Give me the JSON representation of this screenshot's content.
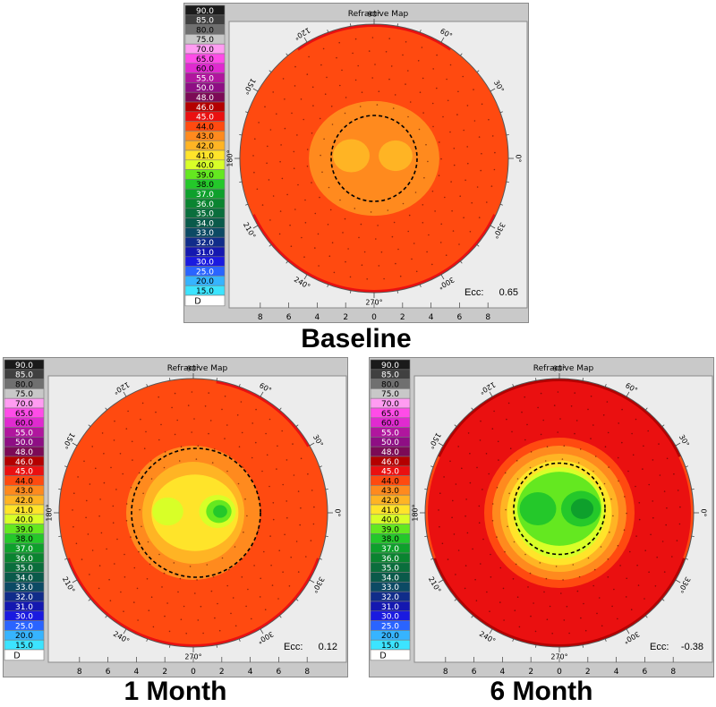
{
  "chart_data": [
    {
      "type": "heatmap",
      "title": "Refractive Map",
      "caption": "Baseline",
      "ecc_label": "Ecc:",
      "ecc_value": "0.65",
      "unit": "D",
      "x_ticks": [
        "8",
        "6",
        "4",
        "2",
        "0",
        "2",
        "4",
        "6",
        "8"
      ],
      "angle_labels": [
        "90°",
        "60°",
        "30°",
        "0°",
        "330°",
        "300°",
        "270°",
        "240°",
        "210°",
        "180°",
        "150°",
        "120°"
      ],
      "central_zone": {
        "cx_mm": 0,
        "cy_mm": 0,
        "r_mm": 3.2
      },
      "regions": [
        {
          "label": "45.0",
          "shape": "cap-top",
          "inner_mm": 6.0,
          "from_deg": 55,
          "to_deg": 125
        },
        {
          "label": "45.0",
          "shape": "cap-bottom",
          "inner_mm": 4.5,
          "from_deg": 205,
          "to_deg": 335
        },
        {
          "label": "44.0",
          "shape": "ring",
          "inner_mm": 4.5,
          "outer_mm": 9.8
        },
        {
          "label": "43.0",
          "shape": "ring",
          "inner_mm": 0,
          "outer_mm": 4.5
        },
        {
          "label": "42.0",
          "shape": "blob",
          "cx_mm": -1.7,
          "cy_mm": 0.2,
          "r_mm": 1.3
        },
        {
          "label": "42.0",
          "shape": "blob",
          "cx_mm": 1.6,
          "cy_mm": 0.2,
          "r_mm": 1.2
        }
      ]
    },
    {
      "type": "heatmap",
      "title": "Refractive Map",
      "caption": "1 Month",
      "ecc_label": "Ecc:",
      "ecc_value": "0.12",
      "unit": "D",
      "x_ticks": [
        "8",
        "6",
        "4",
        "2",
        "0",
        "2",
        "4",
        "6",
        "8"
      ],
      "angle_labels": [
        "90°",
        "60°",
        "30°",
        "0°",
        "330°",
        "300°",
        "270°",
        "240°",
        "210°",
        "180°",
        "150°",
        "120°"
      ],
      "central_zone": {
        "cx_mm": 0.2,
        "cy_mm": 0,
        "r_mm": 4.8
      },
      "regions": [
        {
          "label": "45.0",
          "shape": "cap-bottom",
          "inner_mm": 6.5,
          "from_deg": 200,
          "to_deg": 340
        },
        {
          "label": "45.0",
          "shape": "cap-top",
          "inner_mm": 7.0,
          "from_deg": 30,
          "to_deg": 80
        },
        {
          "label": "44.0",
          "shape": "ring",
          "inner_mm": 5.0,
          "outer_mm": 9.8
        },
        {
          "label": "43.0",
          "shape": "ring",
          "inner_mm": 3.8,
          "outer_mm": 5.0
        },
        {
          "label": "42.0",
          "shape": "ring",
          "inner_mm": 3.0,
          "outer_mm": 3.8
        },
        {
          "label": "41.0",
          "shape": "ring",
          "inner_mm": 0,
          "outer_mm": 3.0
        },
        {
          "label": "40.0",
          "shape": "blob",
          "cx_mm": -1.9,
          "cy_mm": 0.1,
          "r_mm": 1.1
        },
        {
          "label": "40.0",
          "shape": "blob",
          "cx_mm": 1.8,
          "cy_mm": 0.1,
          "r_mm": 1.3
        },
        {
          "label": "39.0",
          "shape": "blob",
          "cx_mm": 1.9,
          "cy_mm": 0.1,
          "r_mm": 0.9
        },
        {
          "label": "38.0",
          "shape": "blob",
          "cx_mm": 2.0,
          "cy_mm": 0.1,
          "r_mm": 0.5
        }
      ]
    },
    {
      "type": "heatmap",
      "title": "Refractive Map",
      "caption": "6 Month",
      "ecc_label": "Ecc:",
      "ecc_value": "-0.38",
      "unit": "D",
      "x_ticks": [
        "8",
        "6",
        "4",
        "2",
        "0",
        "2",
        "4",
        "6",
        "8"
      ],
      "angle_labels": [
        "90°",
        "60°",
        "30°",
        "0°",
        "330°",
        "300°",
        "270°",
        "240°",
        "210°",
        "180°",
        "150°",
        "120°"
      ],
      "central_zone": {
        "cx_mm": 0,
        "cy_mm": 0.3,
        "r_mm": 3.4
      },
      "regions": [
        {
          "label": "46.0",
          "shape": "cap-top",
          "inner_mm": 6.2,
          "from_deg": 25,
          "to_deg": 155
        },
        {
          "label": "46.0",
          "shape": "cap-bottom",
          "inner_mm": 6.0,
          "from_deg": 200,
          "to_deg": 340
        },
        {
          "label": "45.0",
          "shape": "ring",
          "inner_mm": 5.6,
          "outer_mm": 9.8
        },
        {
          "label": "44.0",
          "shape": "ring",
          "inner_mm": 5.0,
          "outer_mm": 5.6
        },
        {
          "label": "43.0",
          "shape": "ring",
          "inner_mm": 4.4,
          "outer_mm": 5.0
        },
        {
          "label": "42.0",
          "shape": "ring",
          "inner_mm": 3.9,
          "outer_mm": 4.4
        },
        {
          "label": "41.0",
          "shape": "ring",
          "inner_mm": 3.4,
          "outer_mm": 3.9
        },
        {
          "label": "40.0",
          "shape": "ring",
          "inner_mm": 2.9,
          "outer_mm": 3.4
        },
        {
          "label": "39.0",
          "shape": "ring",
          "inner_mm": 0,
          "outer_mm": 2.9
        },
        {
          "label": "38.0",
          "shape": "blob",
          "cx_mm": -1.6,
          "cy_mm": 0.3,
          "r_mm": 1.3
        },
        {
          "label": "38.0",
          "shape": "blob",
          "cx_mm": 1.6,
          "cy_mm": 0.3,
          "r_mm": 1.4
        },
        {
          "label": "37.0",
          "shape": "blob",
          "cx_mm": 1.7,
          "cy_mm": 0.3,
          "r_mm": 0.8
        }
      ]
    }
  ],
  "scale": [
    {
      "label": "90.0",
      "color": "#1a1a1a"
    },
    {
      "label": "85.0",
      "color": "#404040"
    },
    {
      "label": "80.0",
      "color": "#707070"
    },
    {
      "label": "75.0",
      "color": "#c8c8c8"
    },
    {
      "label": "70.0",
      "color": "#ff9cf2"
    },
    {
      "label": "65.0",
      "color": "#ff4ce8"
    },
    {
      "label": "60.0",
      "color": "#e02ad0"
    },
    {
      "label": "55.0",
      "color": "#b0169e"
    },
    {
      "label": "50.0",
      "color": "#8e0e84"
    },
    {
      "label": "48.0",
      "color": "#7c0a56"
    },
    {
      "label": "46.0",
      "color": "#b40000"
    },
    {
      "label": "45.0",
      "color": "#ea1010"
    },
    {
      "label": "44.0",
      "color": "#ff4a10"
    },
    {
      "label": "43.0",
      "color": "#ff8a1e"
    },
    {
      "label": "42.0",
      "color": "#ffb424"
    },
    {
      "label": "41.0",
      "color": "#ffe42a"
    },
    {
      "label": "40.0",
      "color": "#d8ff28"
    },
    {
      "label": "39.0",
      "color": "#64e820"
    },
    {
      "label": "38.0",
      "color": "#24c82a"
    },
    {
      "label": "37.0",
      "color": "#0ea02c"
    },
    {
      "label": "36.0",
      "color": "#0a8430"
    },
    {
      "label": "35.0",
      "color": "#0a6e3c"
    },
    {
      "label": "34.0",
      "color": "#0a5a4a"
    },
    {
      "label": "33.0",
      "color": "#0c4a64"
    },
    {
      "label": "32.0",
      "color": "#102c8a"
    },
    {
      "label": "31.0",
      "color": "#1418b0"
    },
    {
      "label": "30.0",
      "color": "#1a1ae0"
    },
    {
      "label": "25.0",
      "color": "#2a64ff"
    },
    {
      "label": "20.0",
      "color": "#36b4ff"
    },
    {
      "label": "15.0",
      "color": "#3ce4ff"
    }
  ]
}
